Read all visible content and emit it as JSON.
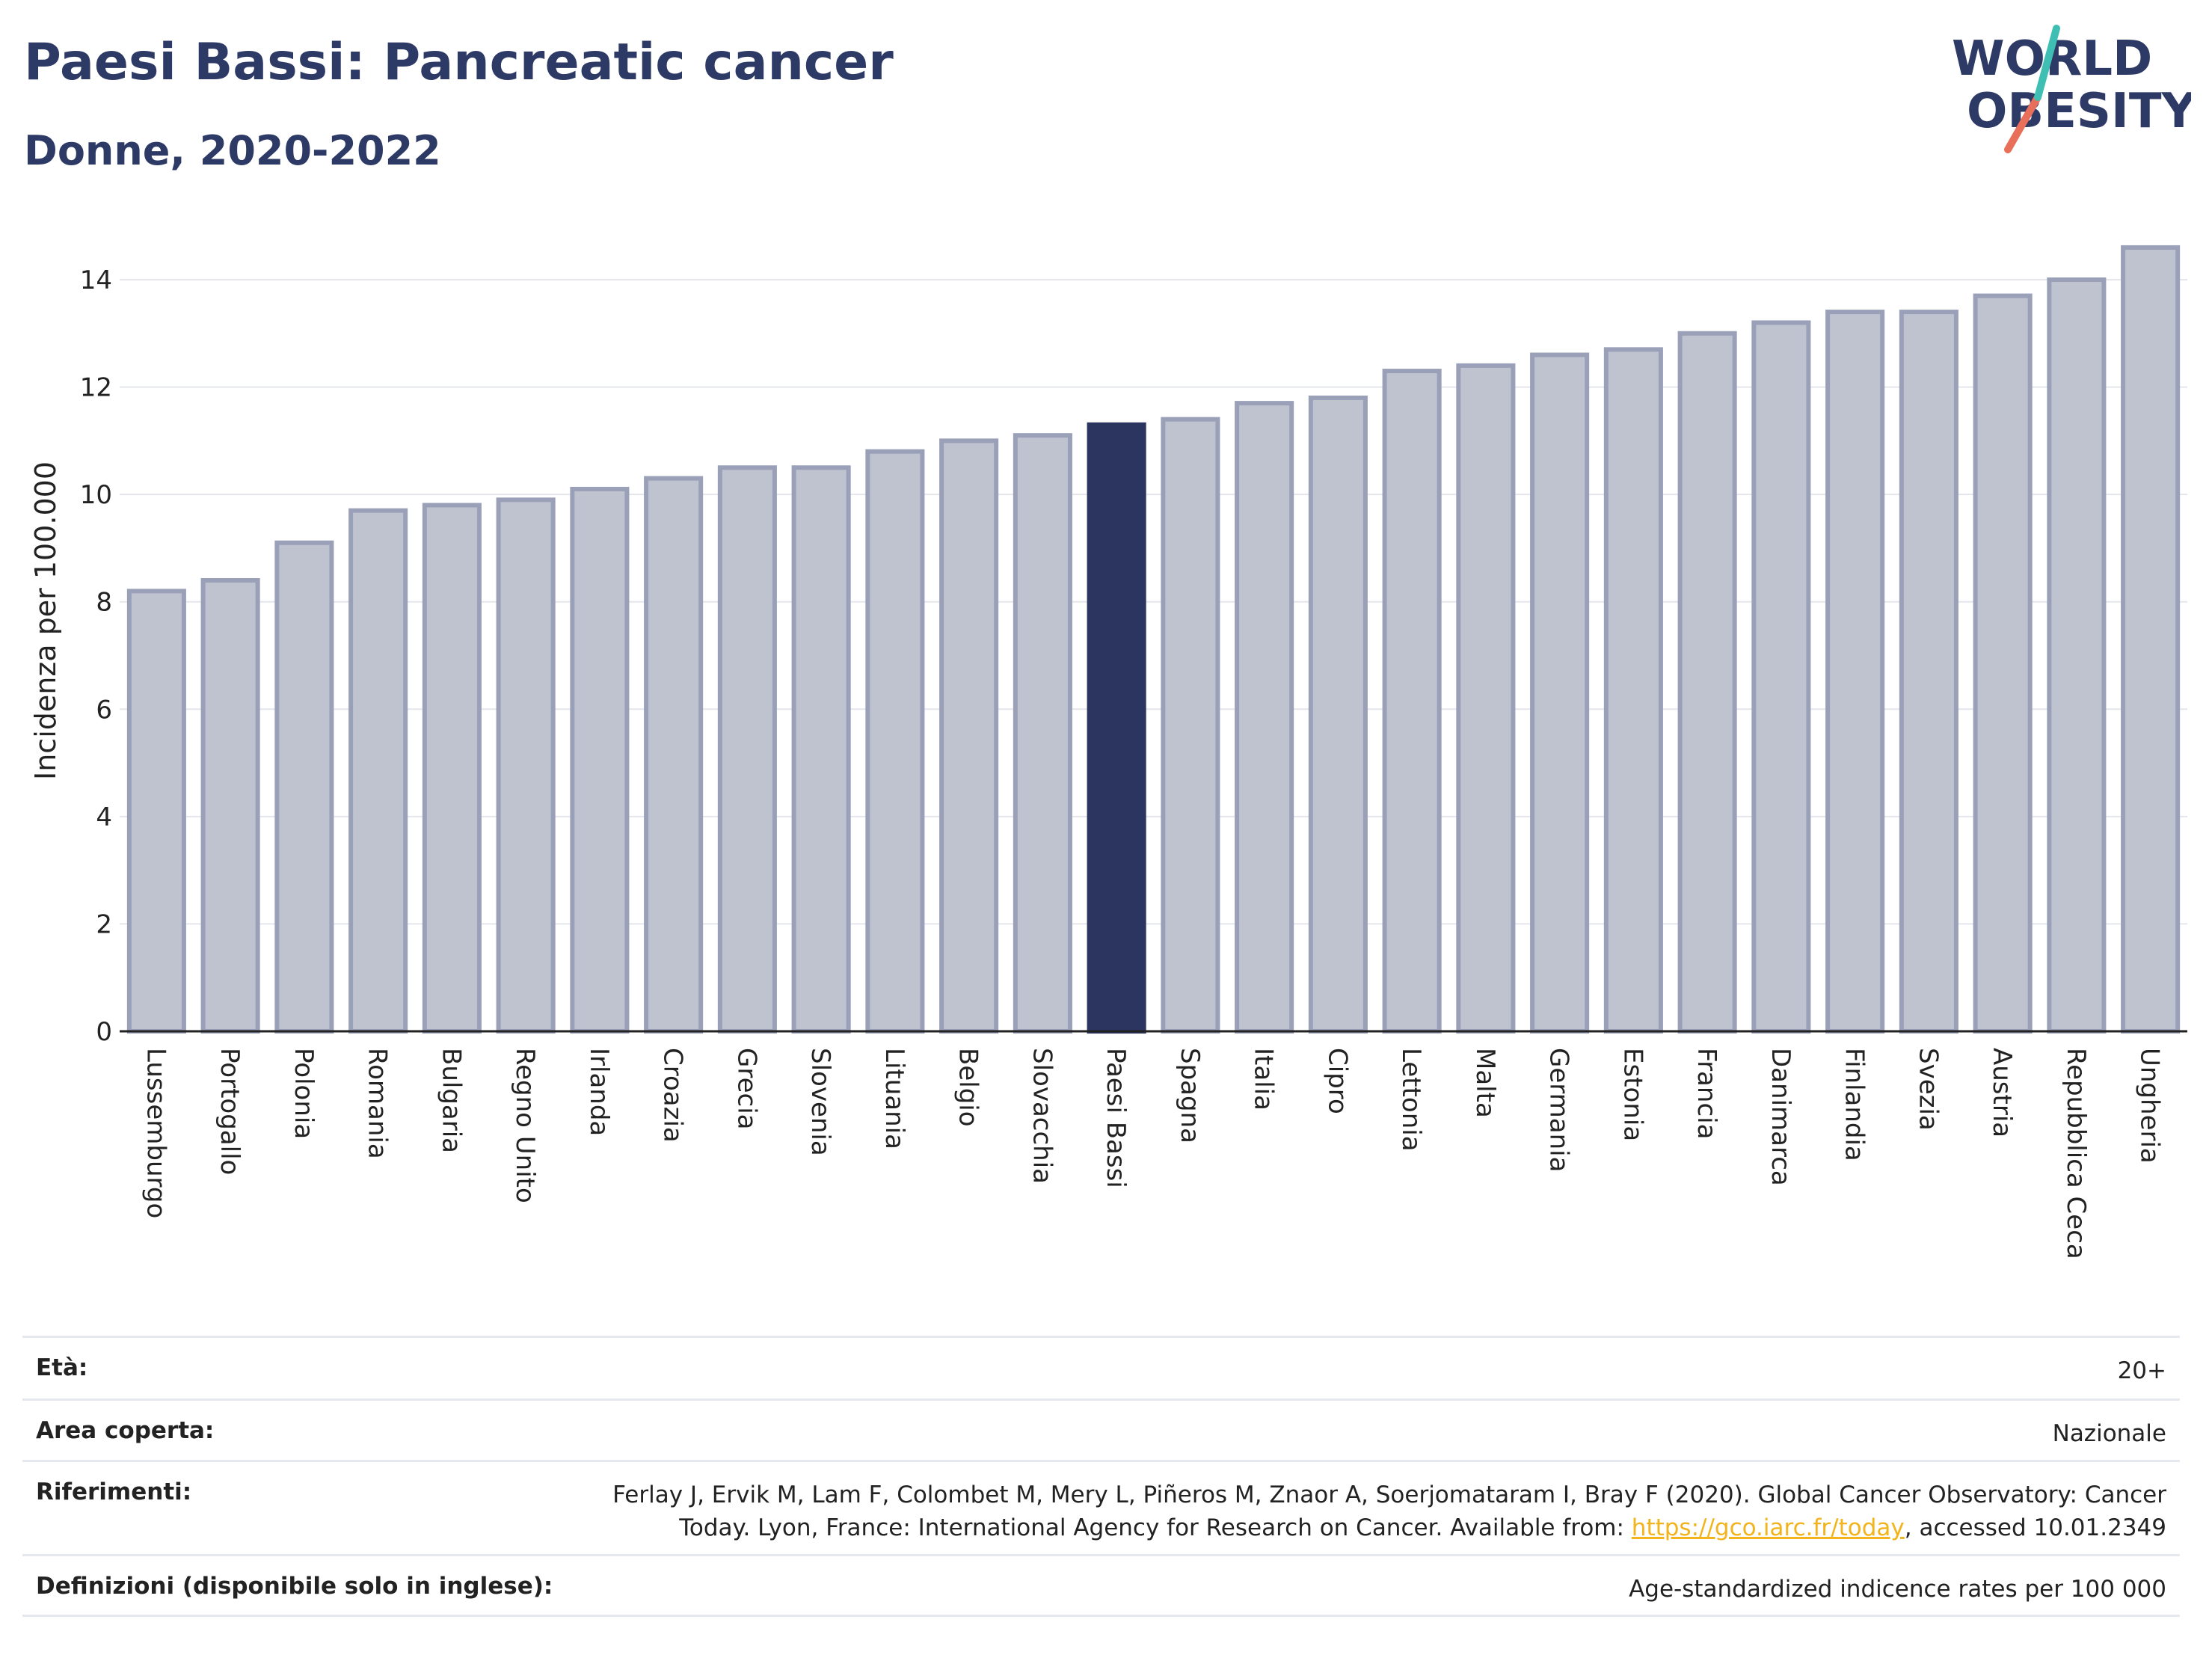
{
  "header": {
    "title": "Paesi Bassi: Pancreatic cancer",
    "subtitle": "Donne, 2020-2022",
    "logo_line1": "WORLD",
    "logo_line2": "OBESITY"
  },
  "colors": {
    "bar": "#bfc3d0",
    "bar_stroke": "#9aa0b8",
    "highlight": "#2b3560",
    "text": "#2d3a66"
  },
  "chart_data": {
    "type": "bar",
    "title": "Paesi Bassi: Pancreatic cancer",
    "subtitle": "Donne, 2020-2022",
    "xlabel": "",
    "ylabel": "Incidenza per 100.000",
    "ylim": [
      0,
      15
    ],
    "yticks": [
      0,
      2,
      4,
      6,
      8,
      10,
      12,
      14
    ],
    "grid": true,
    "highlight": "Paesi Bassi",
    "categories": [
      "Lussemburgo",
      "Portogallo",
      "Polonia",
      "Romania",
      "Bulgaria",
      "Regno Unito",
      "Irlanda",
      "Croazia",
      "Grecia",
      "Slovenia",
      "Lituania",
      "Belgio",
      "Slovacchia",
      "Paesi Bassi",
      "Spagna",
      "Italia",
      "Cipro",
      "Lettonia",
      "Malta",
      "Germania",
      "Estonia",
      "Francia",
      "Danimarca",
      "Finlandia",
      "Svezia",
      "Austria",
      "Repubblica Ceca",
      "Ungheria"
    ],
    "values": [
      8.2,
      8.4,
      9.1,
      9.7,
      9.8,
      9.9,
      10.1,
      10.3,
      10.5,
      10.5,
      10.8,
      11.0,
      11.1,
      11.3,
      11.4,
      11.7,
      11.8,
      12.3,
      12.4,
      12.6,
      12.7,
      13.0,
      13.2,
      13.4,
      13.4,
      13.7,
      14.0,
      14.6
    ]
  },
  "meta": [
    {
      "key": "Età:",
      "value": "20+"
    },
    {
      "key": "Area coperta:",
      "value": "Nazionale"
    },
    {
      "key": "Riferimenti:",
      "value_line1": "Ferlay J, Ervik M, Lam F, Colombet M, Mery L, Piñeros M, Znaor A, Soerjomataram I, Bray F (2020). Global Cancer Observatory: Cancer",
      "value_line2_pre": "Today. Lyon, France: International Agency for Research on Cancer. Available from: ",
      "value_link": "https://gco.iarc.fr/today",
      "value_line2_post": ", accessed 10.01.2349"
    },
    {
      "key": "Definizioni (disponibile solo in inglese):",
      "value": "Age-standardized indicence rates per 100 000"
    }
  ]
}
